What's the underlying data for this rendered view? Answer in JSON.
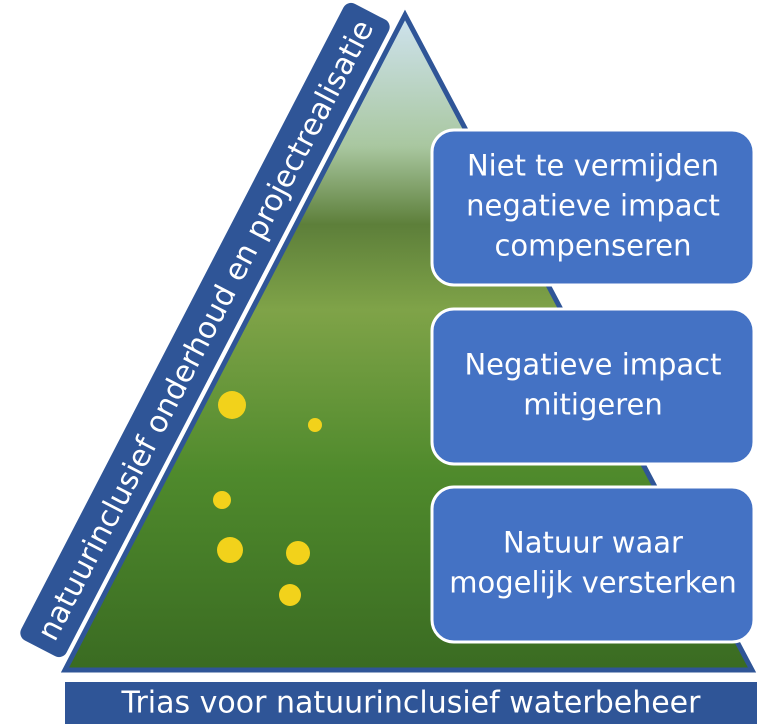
{
  "banner_left": "natuurinclusief onderhoud en projectrealisatie",
  "boxes": [
    {
      "lines": [
        "Niet te vermijden",
        "negatieve impact",
        "compenseren"
      ]
    },
    {
      "lines": [
        "Negatieve impact",
        "mitigeren"
      ]
    },
    {
      "lines": [
        "Natuur waar",
        "mogelijk versterken"
      ]
    }
  ],
  "footer": "Trias voor natuurinclusief waterbeheer"
}
